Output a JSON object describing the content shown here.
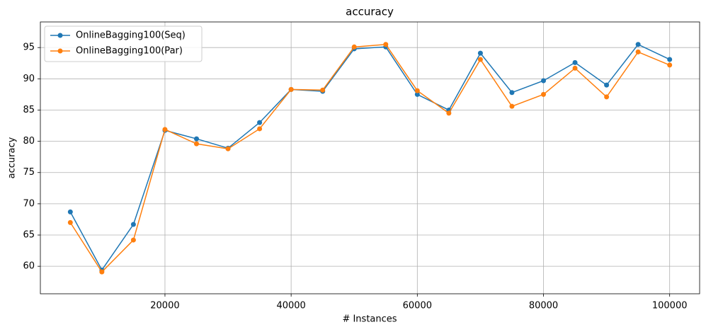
{
  "chart_data": {
    "type": "line",
    "title": "accuracy",
    "xlabel": "# Instances",
    "ylabel": "accuracy",
    "x": [
      5000,
      10000,
      15000,
      20000,
      25000,
      30000,
      35000,
      40000,
      45000,
      50000,
      55000,
      60000,
      65000,
      70000,
      75000,
      80000,
      85000,
      90000,
      95000,
      100000
    ],
    "series": [
      {
        "name": "OnlineBagging100(Seq)",
        "color": "#1f77b4",
        "values": [
          68.7,
          59.4,
          66.7,
          81.75,
          80.4,
          78.9,
          83.0,
          88.3,
          88.0,
          94.8,
          95.1,
          87.5,
          85.0,
          94.1,
          87.8,
          89.7,
          92.6,
          89.0,
          95.5,
          93.1
        ]
      },
      {
        "name": "OnlineBagging100(Par)",
        "color": "#ff7f0e",
        "values": [
          67.0,
          59.1,
          64.2,
          81.9,
          79.6,
          78.8,
          82.0,
          88.3,
          88.2,
          95.1,
          95.5,
          88.1,
          84.5,
          93.1,
          85.6,
          87.5,
          91.7,
          87.1,
          94.3,
          92.2
        ]
      }
    ],
    "xlim": [
      250,
      104750
    ],
    "ylim": [
      55.6,
      99.1
    ],
    "xticks": [
      20000,
      40000,
      60000,
      80000,
      100000
    ],
    "yticks": [
      60,
      65,
      70,
      75,
      80,
      85,
      90,
      95
    ],
    "grid": true,
    "legend": "upper-left"
  }
}
